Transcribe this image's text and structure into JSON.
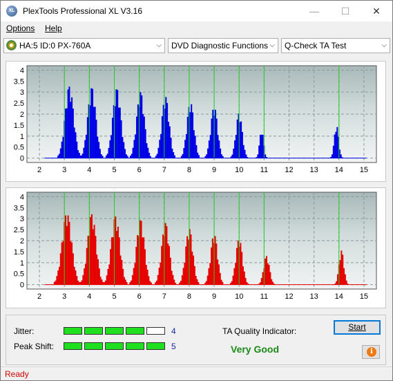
{
  "window": {
    "title": "PlexTools Professional XL V3.16",
    "icon_text": "XL"
  },
  "window_controls": {
    "minimize": "—",
    "maximize": "☐",
    "close": "✕"
  },
  "menu": {
    "items": [
      "Options",
      "Help"
    ]
  },
  "toolbar": {
    "drive": "HA:5 ID:0  PX-760A",
    "function": "DVD Diagnostic Functions",
    "test": "Q-Check TA Test",
    "arrow": "⌵"
  },
  "colors": {
    "jitter_series": "#0000e6",
    "peak_series": "#e60000",
    "marker": "#22cc22",
    "meter_on": "#1ee01e",
    "quality": "#1a8a1a",
    "status": "#d00000"
  },
  "chart_data": [
    {
      "type": "bar",
      "name": "top-chart",
      "color": "#0000e6",
      "x_ticks": [
        2,
        3,
        4,
        5,
        6,
        7,
        8,
        9,
        10,
        11,
        12,
        13,
        14,
        15
      ],
      "y_ticks": [
        0,
        0.5,
        1,
        1.5,
        2,
        2.5,
        3,
        3.5,
        4
      ],
      "y_tick_labels": [
        "0",
        "0.5",
        "1",
        "1.5",
        "2",
        "2.5",
        "3",
        "3.5",
        "4"
      ],
      "xlim": [
        1.5,
        15.5
      ],
      "ylim": [
        -0.2,
        4.2
      ],
      "markers": [
        3,
        4,
        5,
        6,
        7,
        8,
        9,
        10,
        11,
        14
      ],
      "clusters": [
        {
          "center": 3.2,
          "peak": 3.25,
          "half_width": 0.45
        },
        {
          "center": 4.1,
          "peak": 3.2,
          "half_width": 0.42
        },
        {
          "center": 5.1,
          "peak": 3.15,
          "half_width": 0.42
        },
        {
          "center": 6.05,
          "peak": 3.0,
          "half_width": 0.4
        },
        {
          "center": 7.05,
          "peak": 2.8,
          "half_width": 0.38
        },
        {
          "center": 8.05,
          "peak": 2.55,
          "half_width": 0.36
        },
        {
          "center": 9.0,
          "peak": 2.35,
          "half_width": 0.35
        },
        {
          "center": 10.0,
          "peak": 2.05,
          "half_width": 0.32
        },
        {
          "center": 10.9,
          "peak": 1.3,
          "half_width": 0.2
        },
        {
          "center": 13.9,
          "peak": 1.5,
          "half_width": 0.22
        }
      ],
      "spread": 3.3
    },
    {
      "type": "bar",
      "name": "bottom-chart",
      "color": "#e60000",
      "x_ticks": [
        2,
        3,
        4,
        5,
        6,
        7,
        8,
        9,
        10,
        11,
        12,
        13,
        14,
        15
      ],
      "y_ticks": [
        0,
        0.5,
        1,
        1.5,
        2,
        2.5,
        3,
        3.5,
        4
      ],
      "y_tick_labels": [
        "0",
        "0.5",
        "1",
        "1.5",
        "2",
        "2.5",
        "3",
        "3.5",
        "4"
      ],
      "xlim": [
        1.5,
        15.5
      ],
      "ylim": [
        -0.2,
        4.2
      ],
      "markers": [
        3,
        4,
        5,
        6,
        7,
        8,
        9,
        10,
        11,
        14
      ],
      "clusters": [
        {
          "center": 3.1,
          "peak": 3.25,
          "half_width": 0.5
        },
        {
          "center": 4.1,
          "peak": 3.2,
          "half_width": 0.45
        },
        {
          "center": 5.05,
          "peak": 3.1,
          "half_width": 0.45
        },
        {
          "center": 6.05,
          "peak": 2.95,
          "half_width": 0.42
        },
        {
          "center": 7.05,
          "peak": 2.8,
          "half_width": 0.4
        },
        {
          "center": 8.0,
          "peak": 2.55,
          "half_width": 0.38
        },
        {
          "center": 9.0,
          "peak": 2.3,
          "half_width": 0.36
        },
        {
          "center": 10.0,
          "peak": 2.1,
          "half_width": 0.34
        },
        {
          "center": 11.1,
          "peak": 1.3,
          "half_width": 0.3
        },
        {
          "center": 14.1,
          "peak": 1.55,
          "half_width": 0.25
        }
      ],
      "spread": 3.3
    }
  ],
  "panel": {
    "jitter_label": "Jitter:",
    "jitter_segments_on": 4,
    "jitter_segments_total": 5,
    "jitter_value": "4",
    "peak_label": "Peak Shift:",
    "peak_segments_on": 5,
    "peak_segments_total": 5,
    "peak_value": "5",
    "ta_label": "TA Quality Indicator:",
    "ta_value": "Very Good",
    "start_label": "Start",
    "info_symbol": "i"
  },
  "status": {
    "text": "Ready"
  }
}
